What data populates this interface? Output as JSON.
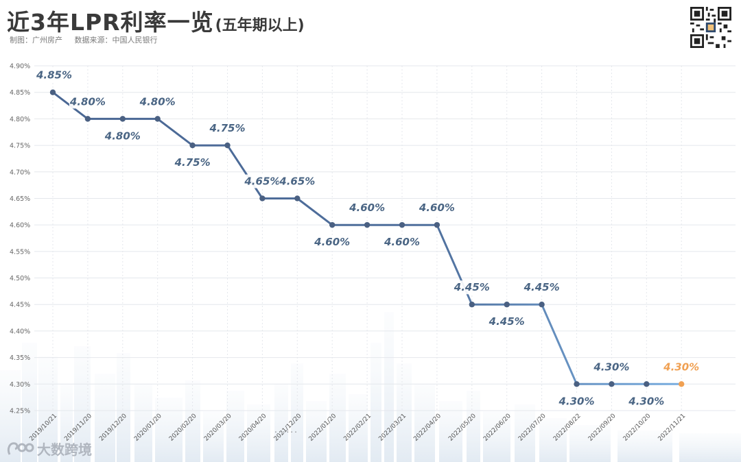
{
  "header": {
    "title": "近3年LPR利率一览",
    "subtitle": "(五年期以上)",
    "producer": "制图：广州房产",
    "source": "数据来源：中国人民银行"
  },
  "footer": {
    "brand": "大数跨境",
    "ellipsis": "......"
  },
  "colors": {
    "line_dark": "#4a6794",
    "line_light": "#6f9fd3",
    "point": "#4a6082",
    "last_point": "#f0a052",
    "grid": "#e4e7ec"
  },
  "chart_data": {
    "type": "line",
    "title": "近3年LPR利率一览(五年期以上)",
    "xlabel": "",
    "ylabel": "",
    "ylim": [
      4.25,
      4.9
    ],
    "yticks": [
      "4.25%",
      "4.30%",
      "4.35%",
      "4.40%",
      "4.45%",
      "4.50%",
      "4.55%",
      "4.60%",
      "4.65%",
      "4.70%",
      "4.75%",
      "4.80%",
      "4.85%",
      "4.90%"
    ],
    "grid": true,
    "categories": [
      "2019/10/21",
      "2019/11/20",
      "2019/12/20",
      "2020/01/20",
      "2020/02/20",
      "2020/03/20",
      "2020/04/20",
      "2021/12/20",
      "2022/01/20",
      "2022/02/21",
      "2022/03/21",
      "2022/04/20",
      "2022/05/20",
      "2022/06/20",
      "2022/07/20",
      "2022/08/22",
      "2022/09/20",
      "2022/10/20",
      "2022/11/21"
    ],
    "values": [
      4.85,
      4.8,
      4.8,
      4.8,
      4.75,
      4.75,
      4.65,
      4.65,
      4.6,
      4.6,
      4.6,
      4.6,
      4.45,
      4.45,
      4.45,
      4.3,
      4.3,
      4.3,
      4.3
    ],
    "labels": [
      "4.85%",
      "4.80%",
      "4.80%",
      "4.80%",
      "4.75%",
      "4.75%",
      "4.65%",
      "4.65%",
      "4.60%",
      "4.60%",
      "4.60%",
      "4.60%",
      "4.45%",
      "4.45%",
      "4.45%",
      "4.30%",
      "4.30%",
      "4.30%",
      "4.30%"
    ],
    "label_position": [
      "above",
      "above",
      "below",
      "above",
      "below",
      "above",
      "above",
      "above",
      "below",
      "above",
      "below",
      "above",
      "above",
      "below",
      "above",
      "below",
      "above",
      "below",
      "above"
    ]
  }
}
